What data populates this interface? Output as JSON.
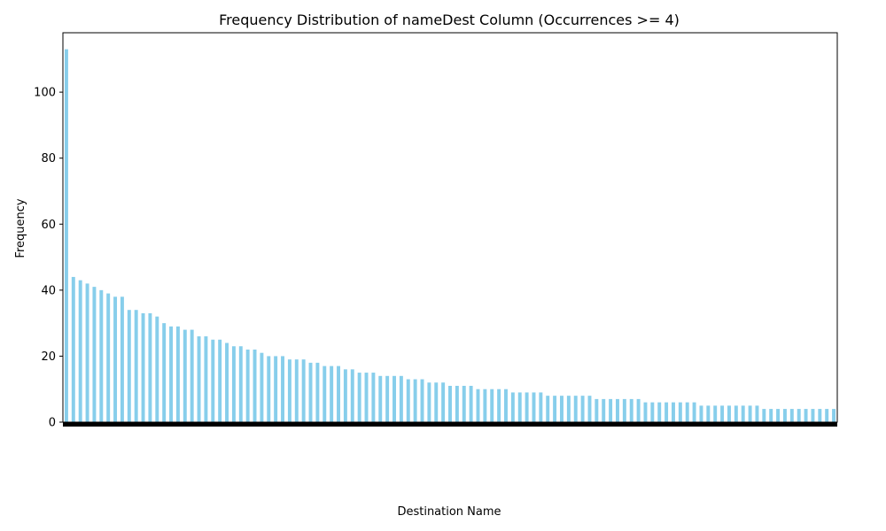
{
  "chart_data": {
    "type": "bar",
    "title": "Frequency Distribution of nameDest Column (Occurrences >= 4)",
    "xlabel": "Destination Name",
    "ylabel": "Frequency",
    "ylim": [
      0,
      118
    ],
    "yticks": [
      0,
      20,
      40,
      60,
      80,
      100
    ],
    "bar_color": "#87CEEB",
    "grid": false,
    "legend": "none",
    "series": [
      {
        "values": [
          113,
          44,
          43,
          42,
          41,
          40,
          39,
          38,
          38,
          34,
          34,
          33,
          33,
          32,
          30,
          29,
          29,
          28,
          28,
          26,
          26,
          25,
          25,
          24,
          23,
          23,
          22,
          22,
          21,
          20,
          20,
          20,
          19,
          19,
          19,
          18,
          18,
          17,
          17,
          17,
          16,
          16,
          15,
          15,
          15,
          14,
          14,
          14,
          14,
          13,
          13,
          13,
          12,
          12,
          12,
          11,
          11,
          11,
          11,
          10,
          10,
          10,
          10,
          10,
          9,
          9,
          9,
          9,
          9,
          8,
          8,
          8,
          8,
          8,
          8,
          8,
          7,
          7,
          7,
          7,
          7,
          7,
          7,
          6,
          6,
          6,
          6,
          6,
          6,
          6,
          6,
          5,
          5,
          5,
          5,
          5,
          5,
          5,
          5,
          5,
          4,
          4,
          4,
          4,
          4,
          4,
          4,
          4,
          4,
          4,
          4
        ]
      }
    ]
  }
}
